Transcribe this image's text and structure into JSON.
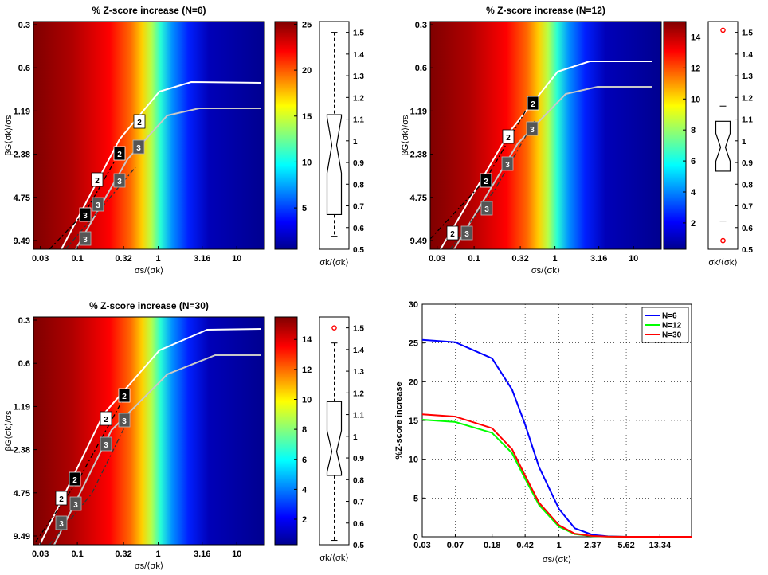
{
  "chart_data": [
    {
      "type": "heatmap",
      "title": "% Z-score increase (N=6)",
      "xlabel": "σs/⟨σk⟩",
      "ylabel": "βG⟨σk⟩/σs",
      "xticks": [
        "0.03",
        "0.1",
        "0.32",
        "1",
        "3.16",
        "10"
      ],
      "yticks": [
        "0.3",
        "0.6",
        "1.19",
        "2.38",
        "4.75",
        "9.49"
      ],
      "colorbar": {
        "ticks": [
          "5",
          "10",
          "15",
          "20",
          "25"
        ],
        "range": [
          0.5,
          25.3
        ]
      },
      "contour_labels": [
        "2",
        "2",
        "2",
        "3",
        "3",
        "3",
        "3"
      ],
      "boxplot": {
        "label": "σk/⟨σk⟩",
        "ticks": [
          "0.5",
          "0.6",
          "0.7",
          "0.8",
          "0.9",
          "1",
          "1.1",
          "1.2",
          "1.3",
          "1.4",
          "1.5"
        ],
        "range": [
          0.5,
          1.55
        ],
        "whisker_low": 0.56,
        "q1": 0.66,
        "median": 0.98,
        "q3": 1.12,
        "whisker_high": 1.5,
        "outliers": []
      }
    },
    {
      "type": "heatmap",
      "title": "% Z-score increase (N=12)",
      "xlabel": "σs/⟨σk⟩",
      "ylabel": "βG⟨σk⟩/σs",
      "xticks": [
        "0.03",
        "0.1",
        "0.32",
        "1",
        "3.16",
        "10"
      ],
      "yticks": [
        "0.3",
        "0.6",
        "1.19",
        "2.38",
        "4.75",
        "9.49"
      ],
      "colorbar": {
        "ticks": [
          "2",
          "4",
          "6",
          "8",
          "10",
          "12",
          "14"
        ],
        "range": [
          0.3,
          15
        ]
      },
      "contour_labels": [
        "2",
        "2",
        "2",
        "2",
        "3",
        "3",
        "3",
        "3"
      ],
      "boxplot": {
        "label": "σk/⟨σk⟩",
        "ticks": [
          "0.5",
          "0.6",
          "0.7",
          "0.8",
          "0.9",
          "1",
          "1.1",
          "1.2",
          "1.3",
          "1.4",
          "1.5"
        ],
        "range": [
          0.5,
          1.55
        ],
        "whisker_low": 0.63,
        "q1": 0.86,
        "median": 0.97,
        "q3": 1.09,
        "whisker_high": 1.16,
        "outliers": [
          1.51,
          0.54
        ]
      }
    },
    {
      "type": "heatmap",
      "title": "% Z-score increase (N=30)",
      "xlabel": "σs/⟨σk⟩",
      "ylabel": "βG⟨σk⟩/σs",
      "xticks": [
        "0.03",
        "0.1",
        "0.32",
        "1",
        "3.16",
        "10"
      ],
      "yticks": [
        "0.3",
        "0.6",
        "1.19",
        "2.38",
        "4.75",
        "9.49"
      ],
      "colorbar": {
        "ticks": [
          "2",
          "4",
          "6",
          "8",
          "10",
          "12",
          "14"
        ],
        "range": [
          0.3,
          15.5
        ]
      },
      "contour_labels": [
        "2",
        "2",
        "2",
        "2",
        "3",
        "3",
        "3",
        "3"
      ],
      "boxplot": {
        "label": "σk/⟨σk⟩",
        "ticks": [
          "0.5",
          "0.6",
          "0.7",
          "0.8",
          "0.9",
          "1",
          "1.1",
          "1.2",
          "1.3",
          "1.4",
          "1.5"
        ],
        "range": [
          0.5,
          1.55
        ],
        "whisker_low": 0.52,
        "q1": 0.82,
        "median": 0.93,
        "q3": 1.16,
        "whisker_high": 1.43,
        "outliers": [
          1.5
        ]
      }
    },
    {
      "type": "line",
      "title": "",
      "xlabel": "σs/⟨σk⟩",
      "ylabel": "%Z-score increase",
      "xticks": [
        "0.03",
        "0.07",
        "0.18",
        "0.42",
        "1",
        "2.37",
        "5.62",
        "13.34"
      ],
      "yticks": [
        "0",
        "5",
        "10",
        "15",
        "20",
        "25",
        "30"
      ],
      "ylim": [
        0,
        30
      ],
      "grid": true,
      "legend_position": "top-right",
      "x": [
        0.03,
        0.07,
        0.18,
        0.3,
        0.42,
        0.6,
        1,
        1.5,
        2.37,
        3.5,
        5.62,
        13.34,
        30
      ],
      "series": [
        {
          "name": "N=6",
          "color": "#0000ff",
          "values": [
            25.4,
            25.1,
            23.0,
            19.0,
            14.5,
            9.0,
            3.6,
            1.1,
            0.25,
            0.06,
            0.0,
            0.0,
            0.0
          ]
        },
        {
          "name": "N=12",
          "color": "#00ff00",
          "values": [
            15.1,
            14.8,
            13.4,
            10.8,
            7.5,
            4.1,
            1.3,
            0.35,
            0.08,
            0.02,
            0.0,
            0.0,
            0.0
          ]
        },
        {
          "name": "N=30",
          "color": "#ff0000",
          "values": [
            15.8,
            15.5,
            14.0,
            11.3,
            7.9,
            4.4,
            1.5,
            0.4,
            0.1,
            0.02,
            0.0,
            0.0,
            0.0
          ]
        }
      ]
    }
  ]
}
